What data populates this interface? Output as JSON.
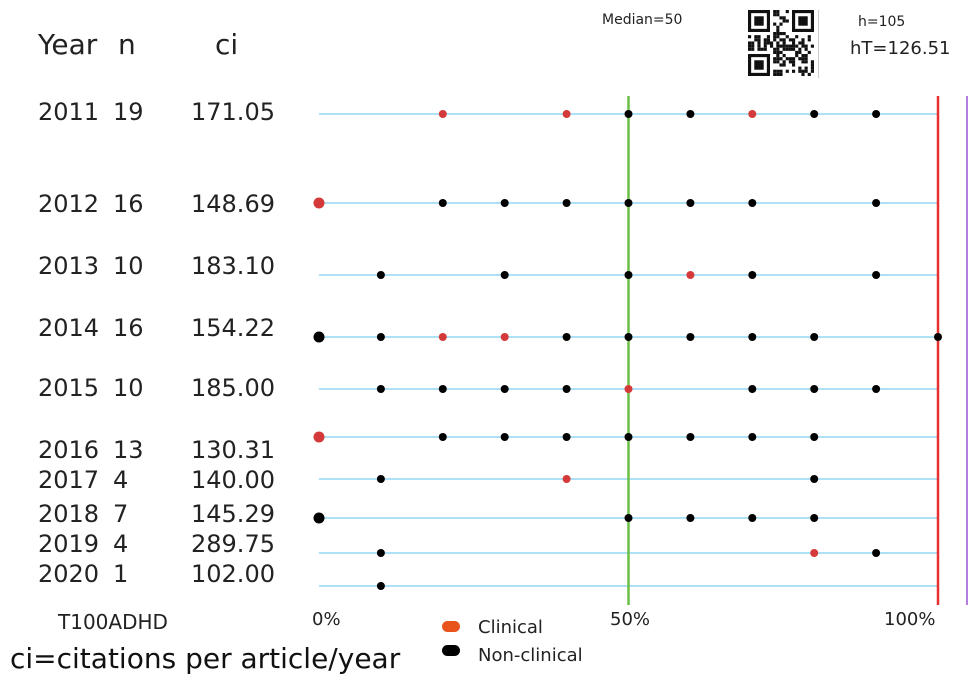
{
  "chart_data": {
    "type": "scatter",
    "title": "T100ADHD",
    "headers": {
      "year": "Year",
      "n": "n",
      "ci": "ci"
    },
    "stats": {
      "median": "Median=50",
      "h": "h=105",
      "hT": "hT=126.51"
    },
    "x_ticks": [
      "0%",
      "50%",
      "100%"
    ],
    "xlim": [
      0,
      100
    ],
    "median_value": 50,
    "ht_value": 100,
    "footnote": "ci=citations per article/year",
    "legend": [
      {
        "label": "Clinical",
        "color": "#e8541c"
      },
      {
        "label": "Non-clinical",
        "color": "#000000"
      }
    ],
    "colors": {
      "row_line": "#7ecff0",
      "median_line": "#6abf45",
      "ht_line": "#e83030",
      "clinical_dot": "#d43a3a",
      "nonclinical_dot": "#000000",
      "right_bar": "#b37ee0"
    },
    "rows": [
      {
        "year": "2011",
        "n": "19",
        "ci": "171.05",
        "points": [
          {
            "x": 20,
            "clinical": true
          },
          {
            "x": 40,
            "clinical": true
          },
          {
            "x": 50,
            "clinical": false
          },
          {
            "x": 60,
            "clinical": false
          },
          {
            "x": 70,
            "clinical": true
          },
          {
            "x": 80,
            "clinical": false
          },
          {
            "x": 90,
            "clinical": false
          }
        ]
      },
      {
        "year": "2012",
        "n": "16",
        "ci": "148.69",
        "points": [
          {
            "x": 0,
            "clinical": true
          },
          {
            "x": 20,
            "clinical": false
          },
          {
            "x": 30,
            "clinical": false
          },
          {
            "x": 40,
            "clinical": false
          },
          {
            "x": 50,
            "clinical": false
          },
          {
            "x": 60,
            "clinical": false
          },
          {
            "x": 70,
            "clinical": false
          },
          {
            "x": 90,
            "clinical": false
          }
        ]
      },
      {
        "year": "2013",
        "n": "10",
        "ci": "183.10",
        "points": [
          {
            "x": 10,
            "clinical": false
          },
          {
            "x": 30,
            "clinical": false
          },
          {
            "x": 50,
            "clinical": false
          },
          {
            "x": 60,
            "clinical": true
          },
          {
            "x": 70,
            "clinical": false
          },
          {
            "x": 90,
            "clinical": false
          }
        ]
      },
      {
        "year": "2014",
        "n": "16",
        "ci": "154.22",
        "points": [
          {
            "x": 0,
            "clinical": false
          },
          {
            "x": 10,
            "clinical": false
          },
          {
            "x": 20,
            "clinical": true
          },
          {
            "x": 30,
            "clinical": true
          },
          {
            "x": 40,
            "clinical": false
          },
          {
            "x": 50,
            "clinical": false
          },
          {
            "x": 60,
            "clinical": false
          },
          {
            "x": 70,
            "clinical": false
          },
          {
            "x": 80,
            "clinical": false
          },
          {
            "x": 100,
            "clinical": false
          }
        ]
      },
      {
        "year": "2015",
        "n": "10",
        "ci": "185.00",
        "points": [
          {
            "x": 10,
            "clinical": false
          },
          {
            "x": 20,
            "clinical": false
          },
          {
            "x": 30,
            "clinical": false
          },
          {
            "x": 40,
            "clinical": false
          },
          {
            "x": 50,
            "clinical": true
          },
          {
            "x": 70,
            "clinical": false
          },
          {
            "x": 80,
            "clinical": false
          },
          {
            "x": 90,
            "clinical": false
          }
        ]
      },
      {
        "year": "2016",
        "n": "13",
        "ci": "130.31",
        "points": [
          {
            "x": 0,
            "clinical": true
          },
          {
            "x": 20,
            "clinical": false
          },
          {
            "x": 30,
            "clinical": false
          },
          {
            "x": 40,
            "clinical": false
          },
          {
            "x": 50,
            "clinical": false
          },
          {
            "x": 60,
            "clinical": false
          },
          {
            "x": 70,
            "clinical": false
          },
          {
            "x": 80,
            "clinical": false
          }
        ]
      },
      {
        "year": "2017",
        "n": "4",
        "ci": "140.00",
        "points": [
          {
            "x": 10,
            "clinical": false
          },
          {
            "x": 40,
            "clinical": true
          },
          {
            "x": 80,
            "clinical": false
          }
        ]
      },
      {
        "year": "2018",
        "n": "7",
        "ci": "145.29",
        "points": [
          {
            "x": 0,
            "clinical": false
          },
          {
            "x": 50,
            "clinical": false
          },
          {
            "x": 60,
            "clinical": false
          },
          {
            "x": 70,
            "clinical": false
          },
          {
            "x": 80,
            "clinical": false
          }
        ]
      },
      {
        "year": "2019",
        "n": "4",
        "ci": "289.75",
        "points": [
          {
            "x": 10,
            "clinical": false
          },
          {
            "x": 80,
            "clinical": true
          },
          {
            "x": 90,
            "clinical": false
          }
        ]
      },
      {
        "year": "2020",
        "n": "1",
        "ci": "102.00",
        "points": [
          {
            "x": 10,
            "clinical": false
          }
        ]
      }
    ]
  }
}
